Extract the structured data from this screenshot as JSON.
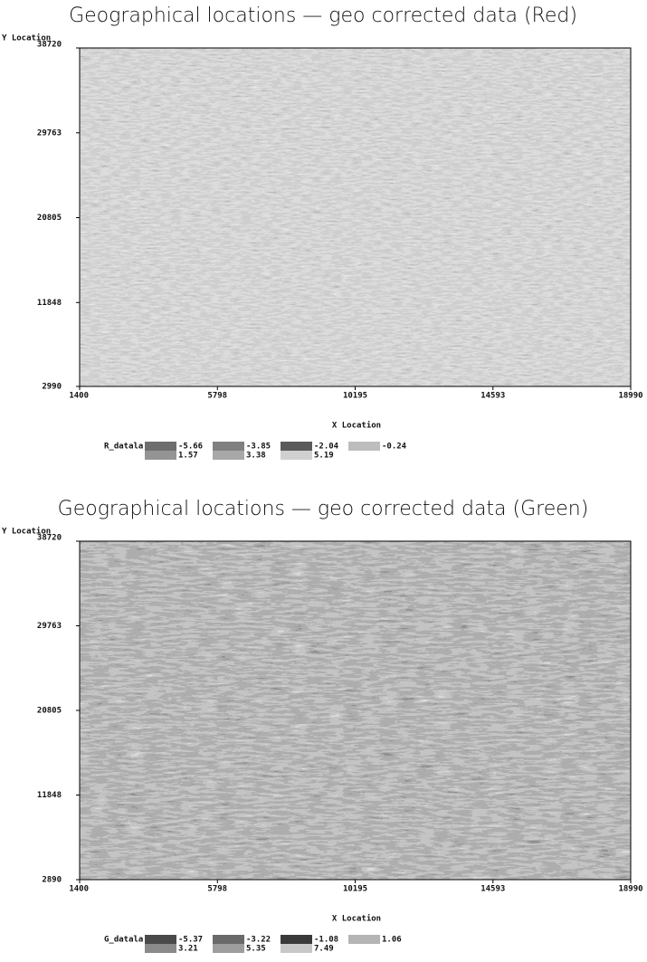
{
  "chart_data": [
    {
      "type": "heatmap",
      "title": "Geographical locations — geo corrected data (Red)",
      "xlabel": "X Location",
      "ylabel": "Y Location",
      "xlim": [
        1400,
        18990
      ],
      "ylim": [
        2990,
        38720
      ],
      "xticks": [
        1400,
        5798,
        10195,
        14593,
        18990
      ],
      "yticks": [
        2990,
        11848,
        20805,
        29763,
        38720
      ],
      "legend": {
        "title": "R_datala",
        "values": [
          -5.66,
          -3.85,
          -2.04,
          -0.24,
          1.57,
          3.38,
          5.19
        ],
        "colors": [
          "#6e6e6e",
          "#808080",
          "#5a5a5a",
          "#bdbdbd",
          "#949494",
          "#a8a8a8",
          "#d0d0d0"
        ]
      }
    },
    {
      "type": "heatmap",
      "title": "Geographical locations — geo corrected data (Green)",
      "xlabel": "X Location",
      "ylabel": "Y Location",
      "xlim": [
        1400,
        18990
      ],
      "ylim": [
        2890,
        38720
      ],
      "xticks": [
        1400,
        5798,
        10195,
        14593,
        18990
      ],
      "yticks": [
        2890,
        11848,
        20805,
        29763,
        38720
      ],
      "legend": {
        "title": "G_datala",
        "values": [
          -5.37,
          -3.22,
          -1.08,
          1.06,
          3.21,
          5.35,
          7.49
        ],
        "colors": [
          "#4a4a4a",
          "#6a6a6a",
          "#3a3a3a",
          "#b5b5b5",
          "#8a8a8a",
          "#9e9e9e",
          "#c8c8c8"
        ]
      }
    }
  ]
}
